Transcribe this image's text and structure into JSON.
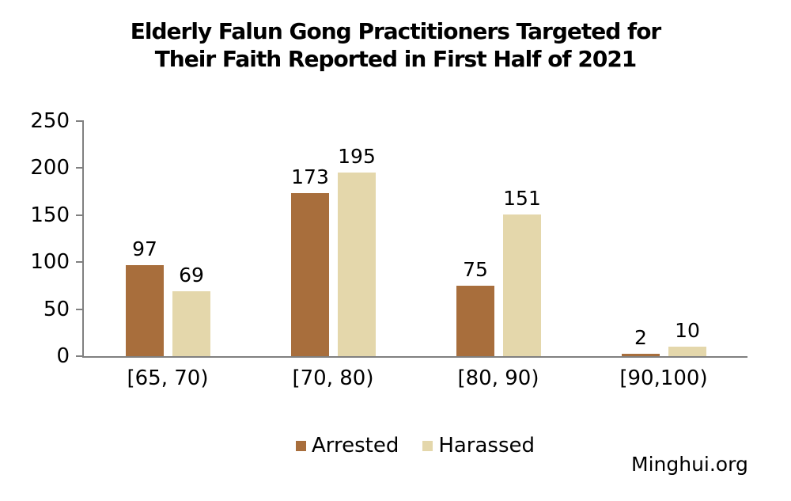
{
  "title_lines": [
    "Elderly Falun Gong Practitioners Targeted for",
    "Their Faith Reported in First Half of 2021"
  ],
  "watermark": "Minghui.org",
  "colors": {
    "arrested": "#A86E3C",
    "harassed": "#E4D7AB",
    "axis": "#808080",
    "text": "#000000",
    "background": "#FFFFFF"
  },
  "chart_data": {
    "type": "bar",
    "title": "Elderly Falun Gong Practitioners Targeted for Their Faith Reported in First Half of 2021",
    "categories": [
      "[65, 70)",
      "[70, 80)",
      "[80, 90)",
      "[90,100)"
    ],
    "series": [
      {
        "name": "Arrested",
        "color": "#A86E3C",
        "values": [
          97,
          173,
          75,
          2
        ]
      },
      {
        "name": "Harassed",
        "color": "#E4D7AB",
        "values": [
          69,
          195,
          151,
          10
        ]
      }
    ],
    "xlabel": "",
    "ylabel": "",
    "ylim": [
      0,
      250
    ],
    "yticks": [
      0,
      50,
      100,
      150,
      200,
      250
    ],
    "grid": false,
    "data_labels": true,
    "legend_position": "bottom",
    "source_label": "Minghui.org"
  }
}
